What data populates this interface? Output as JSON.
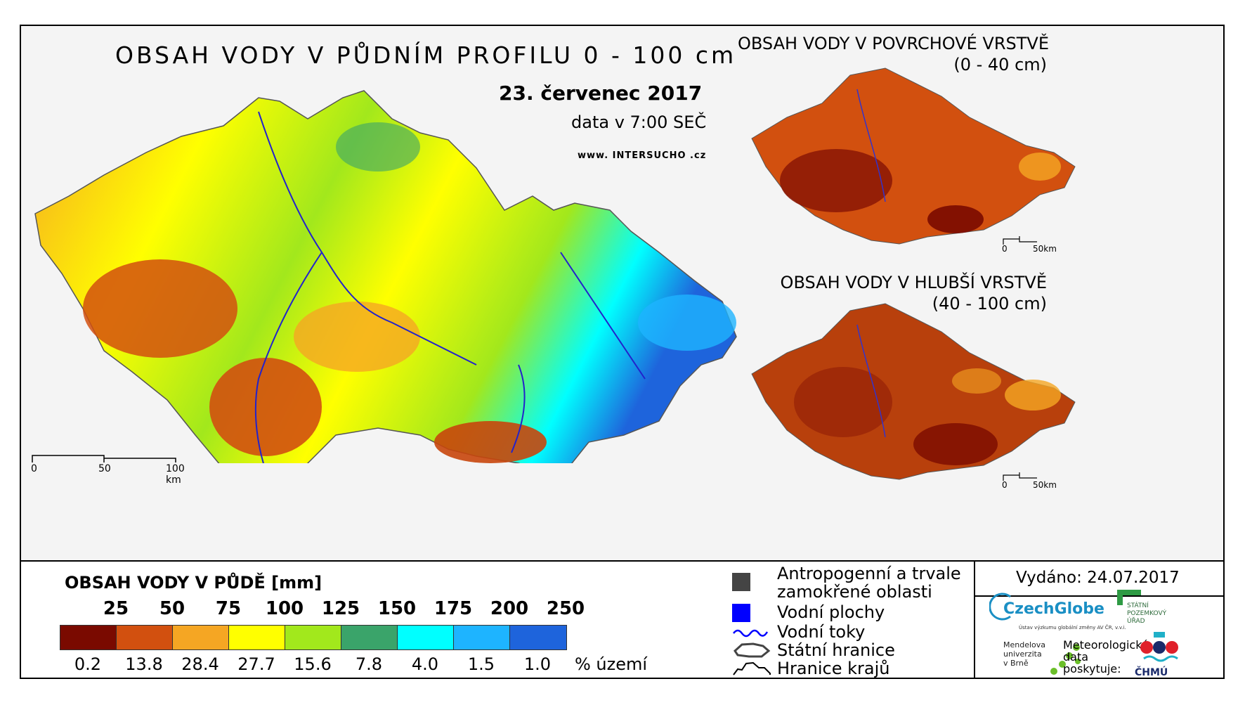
{
  "main_title": "OBSAH VODY V PŮDNÍM PROFILU 0 - 100 cm",
  "date": "23. červenec 2017",
  "time_note": "data v 7:00 SEČ",
  "website": "www. INTERSUCHO .cz",
  "main_scale": {
    "labels": [
      "0",
      "50",
      "100 km"
    ]
  },
  "surface_panel": {
    "title": "OBSAH VODY V POVRCHOVÉ VRSTVĚ",
    "subtitle": "(0 - 40 cm)",
    "scale_labels": [
      "0",
      "50km"
    ]
  },
  "deep_panel": {
    "title": "OBSAH VODY V HLUBŠÍ VRSTVĚ",
    "subtitle": "(40 - 100 cm)",
    "scale_labels": [
      "0",
      "50km"
    ]
  },
  "legend": {
    "title": "OBSAH VODY V PŮDĚ [mm]",
    "thresholds": [
      "25",
      "50",
      "75",
      "100",
      "125",
      "150",
      "175",
      "200",
      "250"
    ],
    "colors": [
      "#7a0a00",
      "#d2500f",
      "#f5a623",
      "#ffff00",
      "#a2e81c",
      "#3aa46a",
      "#00ffff",
      "#1eb4ff",
      "#1e64dc"
    ],
    "percentages": [
      "0.2",
      "13.8",
      "28.4",
      "27.7",
      "15.6",
      "7.8",
      "4.0",
      "1.5",
      "1.0"
    ],
    "percent_unit": "% území"
  },
  "symbols": [
    {
      "label_line1": "Antropogenní a trvale",
      "label_line2": "zamokřené oblasti",
      "icon": "dark-square-icon",
      "color": "#444444"
    },
    {
      "label_line1": "Vodní plochy",
      "icon": "blue-square-icon",
      "color": "#0000ff"
    },
    {
      "label_line1": "Vodní toky",
      "icon": "river-line-icon",
      "color": "#0000ff"
    },
    {
      "label_line1": "Státní hranice",
      "icon": "state-border-icon"
    },
    {
      "label_line1": "Hranice krajů",
      "icon": "region-border-icon"
    }
  ],
  "issued": "Vydáno: 24.07.2017",
  "logos": {
    "czechglobe": "CzechGlobe",
    "czechglobe_sub": "Ústav výzkumu globální změny AV ČR, v.v.i.",
    "mendel": [
      "Mendelova",
      "univerzita",
      "v Brně"
    ],
    "spu": [
      "STÁTNÍ",
      "POZEMKOVÝ",
      "ÚŘAD"
    ],
    "meteo": [
      "Meteorologická",
      "data",
      "poskytuje:"
    ],
    "chmu": "ČHMÚ"
  }
}
